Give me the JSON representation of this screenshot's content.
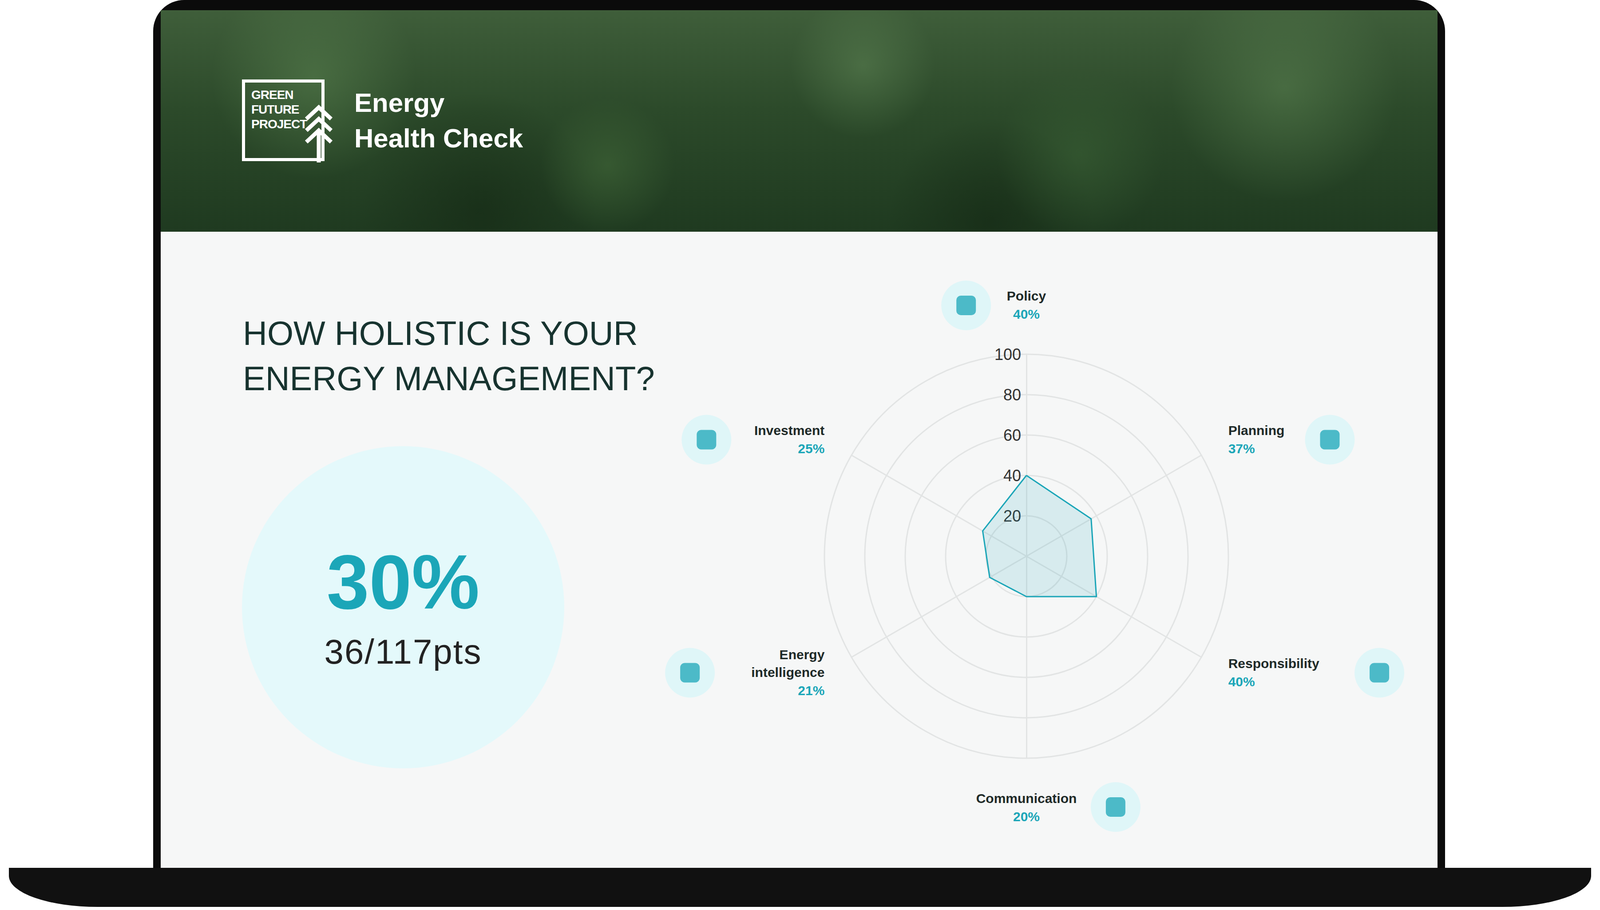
{
  "header": {
    "logo": [
      "GREEN",
      "FUTURE",
      "PROJECT"
    ],
    "title": [
      "Energy",
      "Health Check"
    ]
  },
  "question": "HOW HOLISTIC IS YOUR ENERGY MANAGEMENT?",
  "score": {
    "value": "30%",
    "points": "36/117pts"
  },
  "chart_data": {
    "type": "radar",
    "categories": [
      "Policy",
      "Planning",
      "Responsibility",
      "Communication",
      "Energy intelligence",
      "Investment"
    ],
    "values": [
      40,
      37,
      40,
      20,
      21,
      25
    ],
    "value_labels": [
      "40%",
      "37%",
      "40%",
      "20%",
      "21%",
      "25%"
    ],
    "data_labels": true,
    "color": "#1ba6b8",
    "ylim": [
      0,
      100
    ],
    "yticks": [
      20,
      40,
      60,
      80,
      100
    ],
    "grid": true
  }
}
